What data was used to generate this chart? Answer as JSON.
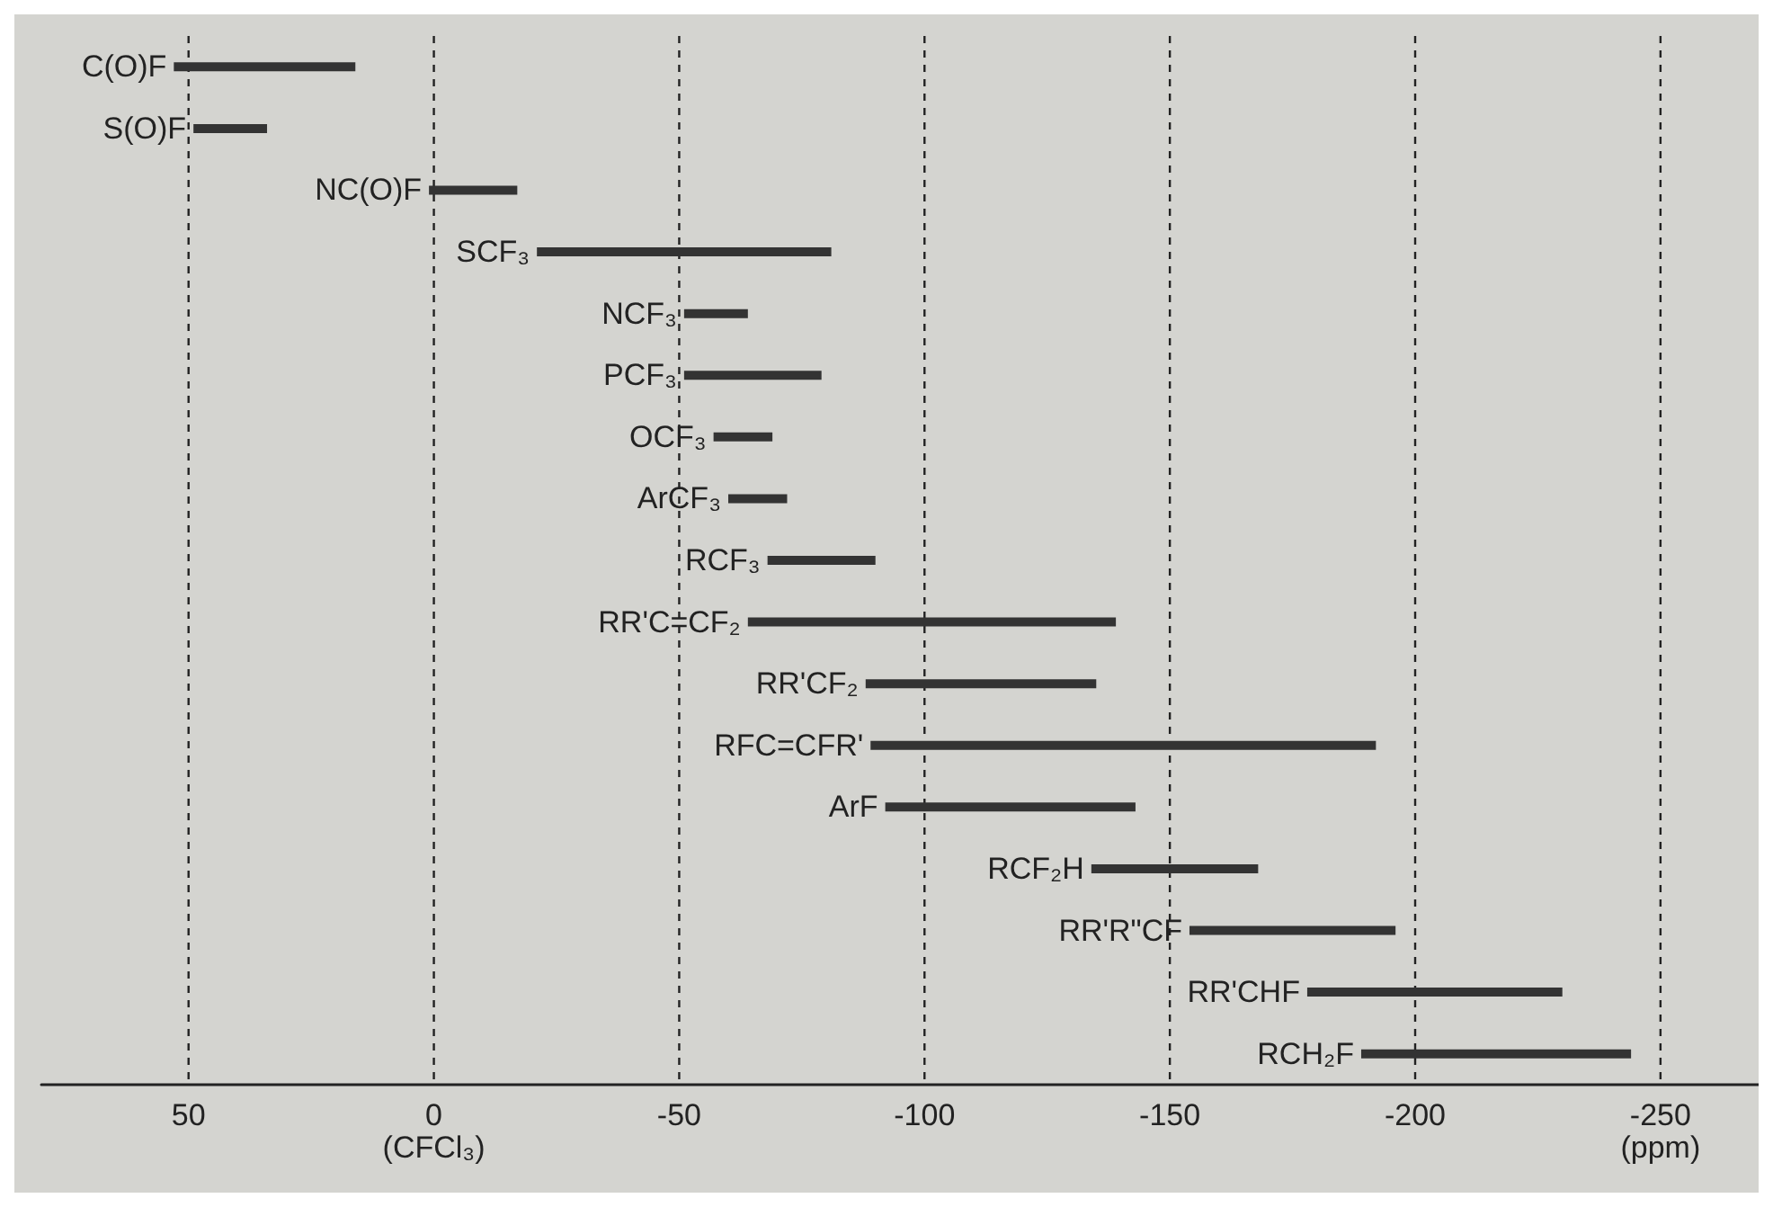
{
  "chart_data": {
    "type": "bar",
    "orientation": "horizontal",
    "categories": [
      "C(O)F",
      "S(O)F",
      "NC(O)F",
      "SCF₃",
      "NCF₃",
      "PCF₃",
      "OCF₃",
      "ArCF₃",
      "RCF₃",
      "RR'C=CF₂",
      "RR'CF₂",
      "RFC=CFR'",
      "ArF",
      "RCF₂H",
      "RR'R\"CF",
      "RR'CHF",
      "RCH₂F"
    ],
    "base": [
      53,
      49,
      1,
      -21,
      -51,
      -51,
      -57,
      -60,
      -68,
      -64,
      -88,
      -89,
      -92,
      -134,
      -154,
      -178,
      -189
    ],
    "values": [
      -37,
      -15,
      -18,
      -60,
      -13,
      -28,
      -12,
      -12,
      -22,
      -75,
      -47,
      -103,
      -51,
      -34,
      -42,
      -52,
      -55
    ],
    "color": "#333333",
    "xlim": [
      80,
      -270
    ],
    "xticks": [
      50,
      {
        "value": 0,
        "label": "0\n(CFCl₃)"
      },
      -50,
      -100,
      -150,
      -200,
      {
        "value": -250,
        "label": "-250\n(ppm)"
      }
    ],
    "grid": "x",
    "tick_labels": "x"
  }
}
